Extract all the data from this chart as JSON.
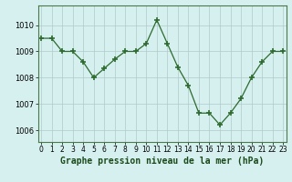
{
  "x": [
    0,
    1,
    2,
    3,
    4,
    5,
    6,
    7,
    8,
    9,
    10,
    11,
    12,
    13,
    14,
    15,
    16,
    17,
    18,
    19,
    20,
    21,
    22,
    23
  ],
  "y": [
    1009.5,
    1009.5,
    1009.0,
    1009.0,
    1008.6,
    1008.0,
    1008.35,
    1008.7,
    1009.0,
    1009.0,
    1009.3,
    1010.2,
    1009.3,
    1008.4,
    1007.7,
    1006.65,
    1006.65,
    1006.2,
    1006.65,
    1007.2,
    1008.0,
    1008.6,
    1009.0,
    1009.0
  ],
  "line_color": "#2d6a2d",
  "marker": "+",
  "marker_size": 5,
  "bg_color": "#d6f0f0",
  "grid_color": "#b0c8c8",
  "xlabel": "Graphe pression niveau de la mer (hPa)",
  "xlabel_fontsize": 7,
  "xlabel_fontweight": "bold",
  "ylabel_ticks": [
    1006,
    1007,
    1008,
    1009,
    1010
  ],
  "xlim": [
    -0.3,
    23.3
  ],
  "ylim": [
    1005.55,
    1010.75
  ],
  "ytick_fontsize": 6,
  "xtick_fontsize": 5.5
}
